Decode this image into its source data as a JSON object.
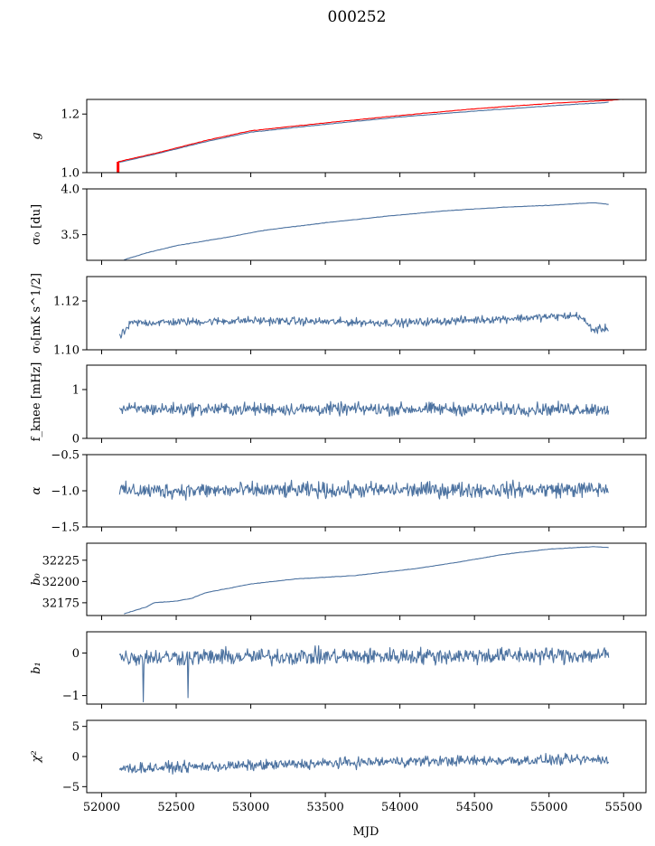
{
  "chart_data": {
    "type": "line",
    "title": "000252",
    "xlabel": "MJD",
    "x_range": [
      51900,
      55650
    ],
    "x_ticks": [
      52000,
      52500,
      53000,
      53500,
      54000,
      54500,
      55000,
      55500
    ],
    "x_tick_labels": [
      "52000",
      "52500",
      "53000",
      "53500",
      "54000",
      "54500",
      "55000",
      "55500"
    ],
    "data_x_start": 52120,
    "data_x_end": 55400,
    "colors": {
      "series": "#4c72a0",
      "reference": "#ff0000"
    },
    "panels": [
      {
        "name": "g",
        "ylabel": "g",
        "ylim": [
          1.0,
          1.25
        ],
        "yticks": [
          1.0,
          1.2
        ],
        "ytick_labels": [
          "1.0",
          "1.2"
        ],
        "series": [
          {
            "name": "g (fit)",
            "color": "#4c72a0",
            "kind": "trend",
            "x": [
              52120,
              52400,
              52700,
              53000,
              53500,
              54000,
              54500,
              55000,
              55400
            ],
            "y": [
              1.035,
              1.068,
              1.106,
              1.138,
              1.165,
              1.19,
              1.21,
              1.228,
              1.24
            ]
          },
          {
            "name": "g (reference)",
            "color": "#ff0000",
            "kind": "trend",
            "x": [
              52110,
              52400,
              52700,
              53000,
              53500,
              54000,
              54500,
              55000,
              55500
            ],
            "y": [
              1.037,
              1.071,
              1.11,
              1.143,
              1.17,
              1.195,
              1.218,
              1.236,
              1.25
            ]
          }
        ]
      },
      {
        "name": "sigma0-du",
        "ylabel": "σ₀ [du]",
        "ylim": [
          3.22,
          4.0
        ],
        "yticks": [
          3.5,
          4.0
        ],
        "ytick_labels": [
          "3.5",
          "4.0"
        ],
        "series": [
          {
            "name": "sigma0 du",
            "color": "#4c72a0",
            "kind": "trend",
            "x": [
              52150,
              52300,
              52500,
              52800,
              53100,
              53500,
              53900,
              54300,
              54700,
              55000,
              55300,
              55400
            ],
            "y": [
              3.225,
              3.3,
              3.38,
              3.46,
              3.55,
              3.63,
              3.7,
              3.76,
              3.8,
              3.82,
              3.85,
              3.83
            ]
          }
        ]
      },
      {
        "name": "sigma0-mk",
        "ylabel": "σ₀[mK s^1/2]",
        "ylim": [
          1.1,
          1.13
        ],
        "yticks": [
          1.1,
          1.12
        ],
        "ytick_labels": [
          "1.10",
          "1.12"
        ],
        "series": [
          {
            "name": "sigma0 mK",
            "color": "#4c72a0",
            "kind": "noise",
            "x": [
              52120,
              52200,
              53000,
              54000,
              55200,
              55300,
              55400
            ],
            "y": [
              1.105,
              1.111,
              1.112,
              1.111,
              1.114,
              1.108,
              1.109
            ],
            "noise": 0.0015
          }
        ]
      },
      {
        "name": "fknee",
        "ylabel": "f_knee [mHz]",
        "ylim": [
          0,
          1.5
        ],
        "yticks": [
          0,
          1
        ],
        "ytick_labels": [
          "0",
          "1"
        ],
        "series": [
          {
            "name": "f knee",
            "color": "#4c72a0",
            "kind": "noise",
            "x": [
              52120,
              55400
            ],
            "y": [
              0.6,
              0.6
            ],
            "noise": 0.12
          }
        ]
      },
      {
        "name": "alpha",
        "ylabel": "α",
        "ylim": [
          -1.5,
          -0.5
        ],
        "yticks": [
          -1.5,
          -1.0,
          -0.5
        ],
        "ytick_labels": [
          "−1.5",
          "−1.0",
          "−0.5"
        ],
        "series": [
          {
            "name": "alpha",
            "color": "#4c72a0",
            "kind": "noise",
            "x": [
              52120,
              55400
            ],
            "y": [
              -1.0,
              -0.98
            ],
            "noise": 0.1
          }
        ]
      },
      {
        "name": "b0",
        "ylabel": "b₀",
        "ylim": [
          32160,
          32245
        ],
        "yticks": [
          32175,
          32200,
          32225
        ],
        "ytick_labels": [
          "32175",
          "32200",
          "32225"
        ],
        "series": [
          {
            "name": "b0",
            "color": "#4c72a0",
            "kind": "trend",
            "x": [
              52150,
              52300,
              52350,
              52500,
              52600,
              52700,
              53000,
              53300,
              53700,
              54100,
              54400,
              54700,
              55000,
              55300,
              55400
            ],
            "y": [
              32162,
              32170,
              32175,
              32177,
              32180,
              32187,
              32197,
              32203,
              32207,
              32215,
              32223,
              32232,
              32238,
              32241,
              32240
            ]
          }
        ]
      },
      {
        "name": "b1",
        "ylabel": "b₁",
        "ylim": [
          -1.2,
          0.5
        ],
        "yticks": [
          -1,
          0
        ],
        "ytick_labels": [
          "−1",
          "0"
        ],
        "series": [
          {
            "name": "b1",
            "color": "#4c72a0",
            "kind": "noise",
            "x": [
              52120,
              55400
            ],
            "y": [
              -0.1,
              -0.05
            ],
            "noise": 0.18,
            "spikes": [
              {
                "x": 52280,
                "y": -1.15
              },
              {
                "x": 52580,
                "y": -1.05
              }
            ]
          }
        ]
      },
      {
        "name": "chi2",
        "ylabel": "χ²",
        "ylim": [
          -6,
          6
        ],
        "yticks": [
          -5,
          0,
          5
        ],
        "ytick_labels": [
          "−5",
          "0",
          "5"
        ],
        "series": [
          {
            "name": "chi2",
            "color": "#4c72a0",
            "kind": "noise",
            "x": [
              52120,
              53000,
              54000,
              55400
            ],
            "y": [
              -2.0,
              -1.5,
              -0.8,
              -0.5
            ],
            "noise": 0.8
          }
        ]
      }
    ]
  }
}
